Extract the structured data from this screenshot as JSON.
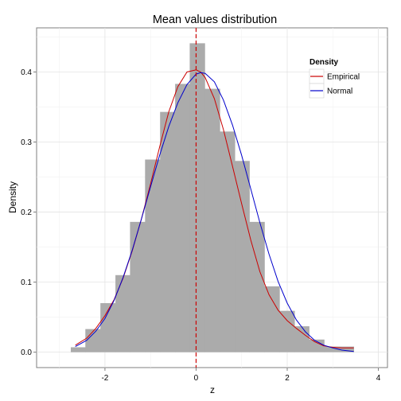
{
  "chart_data": {
    "type": "histogram",
    "title": "Mean values distribution",
    "xlabel": "z",
    "ylabel": "Density",
    "xlim": [
      -3.5,
      4.2
    ],
    "ylim": [
      -0.022,
      0.463
    ],
    "x_ticks": [
      -2,
      0,
      2,
      4
    ],
    "y_ticks": [
      0.0,
      0.1,
      0.2,
      0.3,
      0.4
    ],
    "y_tick_labels": [
      "0.0",
      "0.1",
      "0.2",
      "0.3",
      "0.4"
    ],
    "grid": true,
    "bar_color": "#ababab",
    "bins": [
      {
        "x0": -2.75,
        "x1": -2.43,
        "density": 0.007
      },
      {
        "x0": -2.43,
        "x1": -2.1,
        "density": 0.033
      },
      {
        "x0": -2.1,
        "x1": -1.77,
        "density": 0.07
      },
      {
        "x0": -1.77,
        "x1": -1.45,
        "density": 0.11
      },
      {
        "x0": -1.45,
        "x1": -1.12,
        "density": 0.186
      },
      {
        "x0": -1.12,
        "x1": -0.79,
        "density": 0.275
      },
      {
        "x0": -0.79,
        "x1": -0.46,
        "density": 0.343
      },
      {
        "x0": -0.46,
        "x1": -0.14,
        "density": 0.383
      },
      {
        "x0": -0.14,
        "x1": 0.19,
        "density": 0.441
      },
      {
        "x0": 0.19,
        "x1": 0.52,
        "density": 0.376
      },
      {
        "x0": 0.52,
        "x1": 0.85,
        "density": 0.315
      },
      {
        "x0": 0.85,
        "x1": 1.17,
        "density": 0.273
      },
      {
        "x0": 1.17,
        "x1": 1.5,
        "density": 0.186
      },
      {
        "x0": 1.5,
        "x1": 1.83,
        "density": 0.094
      },
      {
        "x0": 1.83,
        "x1": 2.16,
        "density": 0.059
      },
      {
        "x0": 2.16,
        "x1": 2.48,
        "density": 0.037
      },
      {
        "x0": 2.48,
        "x1": 2.81,
        "density": 0.018
      },
      {
        "x0": 2.81,
        "x1": 3.14,
        "density": 0.008
      },
      {
        "x0": 3.14,
        "x1": 3.46,
        "density": 0.008
      }
    ],
    "series": [
      {
        "name": "Empirical",
        "color": "#cc0000",
        "x": [
          -2.65,
          -2.4,
          -2.2,
          -2.0,
          -1.8,
          -1.6,
          -1.4,
          -1.2,
          -1.0,
          -0.8,
          -0.6,
          -0.4,
          -0.2,
          0.0,
          0.1,
          0.2,
          0.4,
          0.6,
          0.8,
          1.0,
          1.2,
          1.4,
          1.6,
          1.8,
          2.0,
          2.2,
          2.4,
          2.6,
          2.8,
          3.0,
          3.2,
          3.46
        ],
        "y": [
          0.01,
          0.02,
          0.034,
          0.052,
          0.075,
          0.106,
          0.145,
          0.19,
          0.24,
          0.293,
          0.343,
          0.379,
          0.4,
          0.403,
          0.4,
          0.392,
          0.362,
          0.318,
          0.265,
          0.212,
          0.16,
          0.115,
          0.082,
          0.06,
          0.045,
          0.034,
          0.024,
          0.015,
          0.009,
          0.007,
          0.006,
          0.006
        ]
      },
      {
        "name": "Normal",
        "color": "#0000cc",
        "x": [
          -2.65,
          -2.4,
          -2.2,
          -2.0,
          -1.8,
          -1.6,
          -1.4,
          -1.2,
          -1.0,
          -0.8,
          -0.6,
          -0.4,
          -0.2,
          0.0,
          0.1,
          0.2,
          0.4,
          0.6,
          0.8,
          1.0,
          1.2,
          1.4,
          1.6,
          1.8,
          2.0,
          2.2,
          2.4,
          2.6,
          2.8,
          3.0,
          3.2,
          3.46
        ],
        "y": [
          0.008,
          0.017,
          0.03,
          0.048,
          0.074,
          0.107,
          0.146,
          0.19,
          0.236,
          0.281,
          0.322,
          0.356,
          0.382,
          0.397,
          0.399,
          0.398,
          0.386,
          0.36,
          0.324,
          0.281,
          0.233,
          0.185,
          0.14,
          0.101,
          0.07,
          0.046,
          0.029,
          0.017,
          0.01,
          0.006,
          0.003,
          0.001
        ]
      }
    ],
    "vline": {
      "x": 0.0,
      "color": "#cc0000",
      "style": "dashed"
    },
    "legend": {
      "title": "Density",
      "position": "top-right",
      "entries": [
        "Empirical",
        "Normal"
      ]
    }
  }
}
